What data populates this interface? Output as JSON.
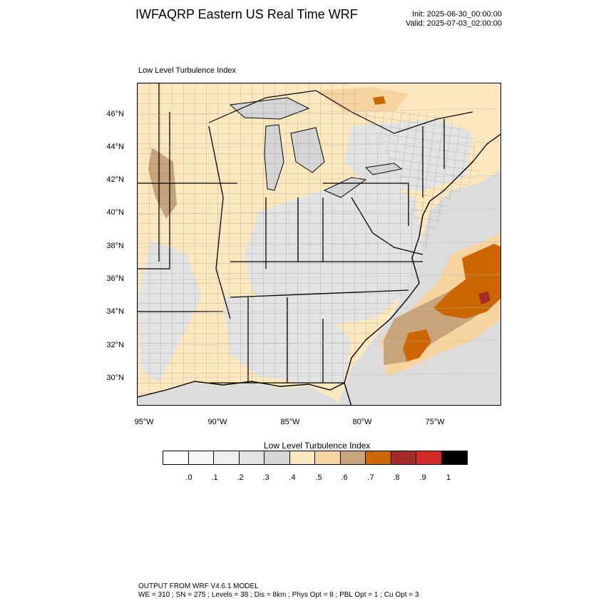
{
  "header": {
    "title": "IWFAQRP Eastern US Real Time WRF",
    "init": "Init: 2025-06-30_00:00:00",
    "valid": "Valid: 2025-07-03_02:00:00"
  },
  "map": {
    "panel_title": "Low Level Turbulence Index",
    "lat_labels": [
      "46°N",
      "44°N",
      "42°N",
      "40°N",
      "38°N",
      "36°N",
      "34°N",
      "32°N",
      "30°N"
    ],
    "lon_labels": [
      "95°W",
      "90°W",
      "85°W",
      "80°W",
      "75°W"
    ],
    "region": "Eastern United States",
    "colors": {
      "land_base": "#fde7bf",
      "ocean_low": "#dcdcdc",
      "mid": "#f7d3a0",
      "high": "#c8a47a",
      "severe": "#cc6600",
      "extreme": "#a52a2a"
    }
  },
  "colorbar": {
    "title": "Low Level Turbulence Index",
    "colors": [
      "#ffffff",
      "#f7f7f7",
      "#efefef",
      "#e3e3e3",
      "#d6d6d6",
      "#fde7bf",
      "#f7d3a0",
      "#c8a47a",
      "#cc6600",
      "#a52a2a",
      "#d42a2a",
      "#000000"
    ],
    "ticks": [
      ".0",
      ".1",
      ".2",
      ".3",
      ".4",
      ".5",
      ".6",
      ".7",
      ".8",
      ".9",
      "1"
    ]
  },
  "footer": {
    "line1": "OUTPUT FROM WRF V4.6.1 MODEL",
    "line2": "WE = 310 ; SN = 275 ; Levels = 38 ; Dis = 8km ; Phys Opt = 8 ; PBL Opt = 1 ; Cu Opt = 3"
  }
}
